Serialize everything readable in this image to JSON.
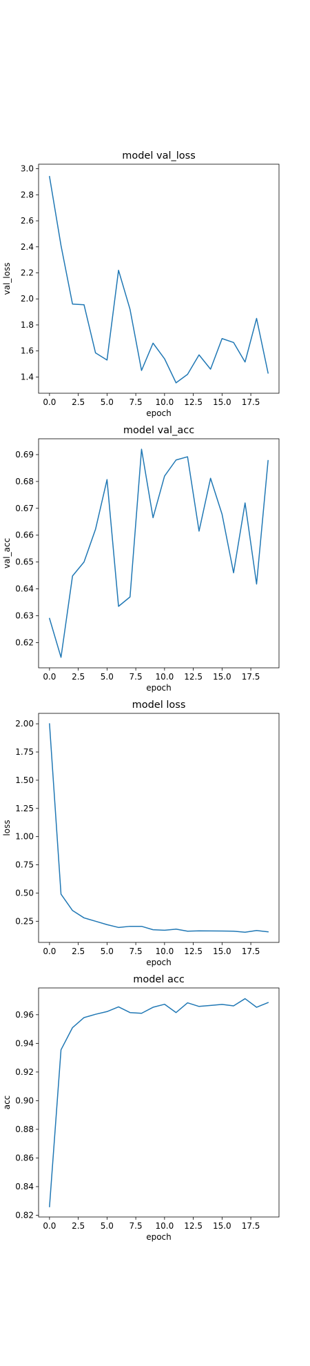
{
  "chart_data": [
    {
      "type": "line",
      "title": "model val_loss",
      "xlabel": "epoch",
      "ylabel": "val_loss",
      "x": [
        0,
        1,
        2,
        3,
        4,
        5,
        6,
        7,
        8,
        9,
        10,
        11,
        12,
        13,
        14,
        15,
        16,
        17,
        18,
        19
      ],
      "series": [
        {
          "values": [
            2.94,
            2.41,
            1.96,
            1.955,
            1.585,
            1.53,
            2.22,
            1.92,
            1.45,
            1.66,
            1.54,
            1.355,
            1.42,
            1.57,
            1.46,
            1.695,
            1.665,
            1.515,
            1.85,
            1.43
          ],
          "color": "#1f77b4"
        }
      ],
      "xlim": [
        -0.95,
        19.95
      ],
      "ylim": [
        1.275,
        3.035
      ],
      "xticks": [
        0.0,
        2.5,
        5.0,
        7.5,
        10.0,
        12.5,
        15.0,
        17.5
      ],
      "xtick_labels": [
        "0.0",
        "2.5",
        "5.0",
        "7.5",
        "10.0",
        "12.5",
        "15.0",
        "17.5"
      ],
      "yticks": [
        1.4,
        1.6,
        1.8,
        2.0,
        2.2,
        2.4,
        2.6,
        2.8,
        3.0
      ],
      "ytick_labels": [
        "1.4",
        "1.6",
        "1.8",
        "2.0",
        "2.2",
        "2.4",
        "2.6",
        "2.8",
        "3.0"
      ],
      "grid": false
    },
    {
      "type": "line",
      "title": "model val_acc",
      "xlabel": "epoch",
      "ylabel": "val_acc",
      "x": [
        0,
        1,
        2,
        3,
        4,
        5,
        6,
        7,
        8,
        9,
        10,
        11,
        12,
        13,
        14,
        15,
        16,
        17,
        18,
        19
      ],
      "series": [
        {
          "values": [
            0.629,
            0.6145,
            0.6448,
            0.65,
            0.6622,
            0.6807,
            0.6335,
            0.637,
            0.692,
            0.6665,
            0.682,
            0.688,
            0.6892,
            0.6615,
            0.6812,
            0.6678,
            0.646,
            0.672,
            0.6418,
            0.6878
          ],
          "color": "#1f77b4"
        }
      ],
      "xlim": [
        -0.95,
        19.95
      ],
      "ylim": [
        0.6106,
        0.6959
      ],
      "xticks": [
        0.0,
        2.5,
        5.0,
        7.5,
        10.0,
        12.5,
        15.0,
        17.5
      ],
      "xtick_labels": [
        "0.0",
        "2.5",
        "5.0",
        "7.5",
        "10.0",
        "12.5",
        "15.0",
        "17.5"
      ],
      "yticks": [
        0.62,
        0.63,
        0.64,
        0.65,
        0.66,
        0.67,
        0.68,
        0.69
      ],
      "ytick_labels": [
        "0.62",
        "0.63",
        "0.64",
        "0.65",
        "0.66",
        "0.67",
        "0.68",
        "0.69"
      ],
      "grid": false
    },
    {
      "type": "line",
      "title": "model loss",
      "xlabel": "epoch",
      "ylabel": "loss",
      "x": [
        0,
        1,
        2,
        3,
        4,
        5,
        6,
        7,
        8,
        9,
        10,
        11,
        12,
        13,
        14,
        15,
        16,
        17,
        18,
        19
      ],
      "series": [
        {
          "values": [
            2.0,
            0.49,
            0.345,
            0.28,
            0.25,
            0.22,
            0.195,
            0.205,
            0.205,
            0.175,
            0.17,
            0.18,
            0.162,
            0.165,
            0.164,
            0.163,
            0.162,
            0.153,
            0.168,
            0.156
          ],
          "color": "#1f77b4"
        }
      ],
      "xlim": [
        -0.95,
        19.95
      ],
      "ylim": [
        0.0625,
        2.0925
      ],
      "xticks": [
        0.0,
        2.5,
        5.0,
        7.5,
        10.0,
        12.5,
        15.0,
        17.5
      ],
      "xtick_labels": [
        "0.0",
        "2.5",
        "5.0",
        "7.5",
        "10.0",
        "12.5",
        "15.0",
        "17.5"
      ],
      "yticks": [
        0.25,
        0.5,
        0.75,
        1.0,
        1.25,
        1.5,
        1.75,
        2.0
      ],
      "ytick_labels": [
        "0.25",
        "0.50",
        "0.75",
        "1.00",
        "1.25",
        "1.50",
        "1.75",
        "2.00"
      ],
      "grid": false
    },
    {
      "type": "line",
      "title": "model acc",
      "xlabel": "epoch",
      "ylabel": "acc",
      "x": [
        0,
        1,
        2,
        3,
        4,
        5,
        6,
        7,
        8,
        9,
        10,
        11,
        12,
        13,
        14,
        15,
        16,
        17,
        18,
        19
      ],
      "series": [
        {
          "values": [
            0.826,
            0.9355,
            0.951,
            0.958,
            0.9603,
            0.9622,
            0.9655,
            0.9615,
            0.961,
            0.9652,
            0.9673,
            0.9615,
            0.9683,
            0.9658,
            0.9665,
            0.9672,
            0.9662,
            0.9712,
            0.9652,
            0.9685
          ],
          "color": "#1f77b4"
        }
      ],
      "xlim": [
        -0.95,
        19.95
      ],
      "ylim": [
        0.8188,
        0.9787
      ],
      "xticks": [
        0.0,
        2.5,
        5.0,
        7.5,
        10.0,
        12.5,
        15.0,
        17.5
      ],
      "xtick_labels": [
        "0.0",
        "2.5",
        "5.0",
        "7.5",
        "10.0",
        "12.5",
        "15.0",
        "17.5"
      ],
      "yticks": [
        0.82,
        0.84,
        0.86,
        0.88,
        0.9,
        0.92,
        0.94,
        0.96
      ],
      "ytick_labels": [
        "0.82",
        "0.84",
        "0.86",
        "0.88",
        "0.90",
        "0.92",
        "0.94",
        "0.96"
      ],
      "grid": false
    }
  ]
}
